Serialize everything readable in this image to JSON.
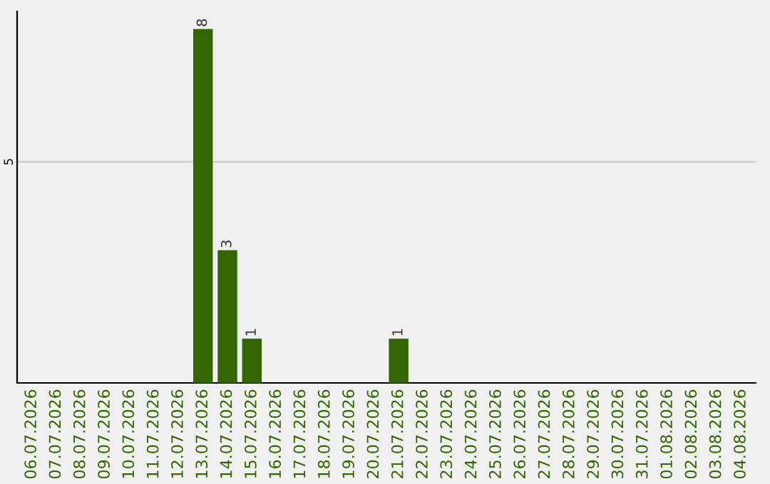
{
  "chart_data": {
    "type": "bar",
    "categories": [
      "06.07.2026",
      "07.07.2026",
      "08.07.2026",
      "09.07.2026",
      "10.07.2026",
      "11.07.2026",
      "12.07.2026",
      "13.07.2026",
      "14.07.2026",
      "15.07.2026",
      "16.07.2026",
      "17.07.2026",
      "18.07.2026",
      "19.07.2026",
      "20.07.2026",
      "21.07.2026",
      "22.07.2026",
      "23.07.2026",
      "24.07.2026",
      "25.07.2026",
      "26.07.2026",
      "27.07.2026",
      "28.07.2026",
      "29.07.2026",
      "30.07.2026",
      "31.07.2026",
      "01.08.2026",
      "02.08.2026",
      "03.08.2026",
      "04.08.2026"
    ],
    "values": [
      0,
      0,
      0,
      0,
      0,
      0,
      0,
      8,
      3,
      1,
      0,
      0,
      0,
      0,
      0,
      1,
      0,
      0,
      0,
      0,
      0,
      0,
      0,
      0,
      0,
      0,
      0,
      0,
      0,
      0
    ],
    "value_labels": [
      null,
      null,
      null,
      null,
      null,
      null,
      null,
      "8",
      "3",
      "1",
      null,
      null,
      null,
      null,
      null,
      "1",
      null,
      null,
      null,
      null,
      null,
      null,
      null,
      null,
      null,
      null,
      null,
      null,
      null,
      null
    ],
    "color": "#336600",
    "ylim": [
      0,
      8.4
    ],
    "yticks": [
      5
    ],
    "grid": "y",
    "legend": false
  }
}
